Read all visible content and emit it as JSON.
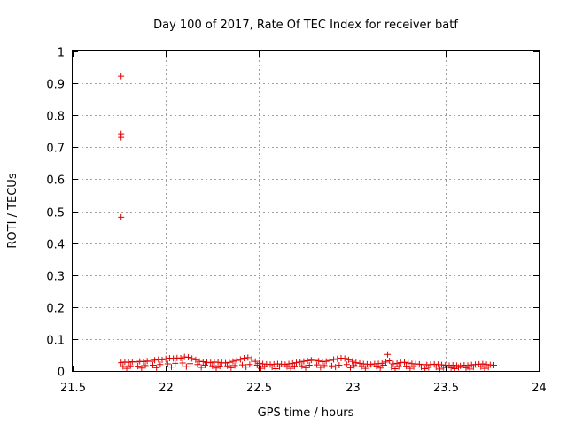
{
  "chart_data": {
    "type": "scatter",
    "title": "Day 100 of 2017, Rate Of TEC Index for receiver batf",
    "xlabel": "GPS time / hours",
    "ylabel": "ROTI / TECUs",
    "xlim": [
      21.5,
      24
    ],
    "ylim": [
      0,
      1
    ],
    "xticks": [
      "21.5",
      "22",
      "22.5",
      "23",
      "23.5",
      "24"
    ],
    "yticks": [
      "0",
      "0.1",
      "0.2",
      "0.3",
      "0.4",
      "0.5",
      "0.6",
      "0.7",
      "0.8",
      "0.9",
      "1"
    ],
    "grid": true,
    "marker": "+",
    "color": "#e00000",
    "series": [
      {
        "x": [
          21.76,
          21.76,
          21.76,
          21.76,
          21.76,
          21.78,
          21.8,
          21.82,
          21.84,
          21.86,
          21.88,
          21.9,
          21.92,
          21.94,
          21.96,
          21.98,
          22.0,
          22.02,
          22.04,
          22.06,
          22.08,
          22.1,
          22.12,
          22.14,
          22.16,
          22.18,
          22.2,
          22.22,
          22.24,
          22.26,
          22.28,
          22.3,
          22.32,
          22.34,
          22.36,
          22.38,
          22.4,
          22.42,
          22.44,
          22.46,
          22.48,
          22.5,
          22.52,
          22.54,
          22.56,
          22.58,
          22.6,
          22.62,
          22.64,
          22.66,
          22.68,
          22.7,
          22.72,
          22.74,
          22.76,
          22.78,
          22.8,
          22.82,
          22.84,
          22.86,
          22.88,
          22.9,
          22.92,
          22.94,
          22.96,
          22.98,
          23.0,
          23.02,
          23.04,
          23.06,
          23.08,
          23.1,
          23.12,
          23.14,
          23.16,
          23.18,
          23.2,
          23.22,
          23.24,
          23.26,
          23.28,
          23.3,
          23.32,
          23.34,
          23.36,
          23.38,
          23.4,
          23.42,
          23.44,
          23.46,
          23.48,
          23.5,
          23.52,
          23.54,
          23.56,
          23.58,
          23.6,
          23.62,
          23.64,
          23.66,
          23.68,
          23.7,
          23.72,
          23.74,
          23.76,
          21.77,
          21.81,
          21.85,
          21.89,
          21.93,
          21.97,
          22.01,
          22.05,
          22.09,
          22.13,
          22.17,
          22.21,
          22.25,
          22.29,
          22.33,
          22.37,
          22.41,
          22.45,
          22.49,
          22.53,
          22.57,
          22.61,
          22.65,
          22.69,
          22.73,
          22.77,
          22.81,
          22.85,
          22.89,
          22.93,
          22.97,
          23.01,
          23.05,
          23.09,
          23.13,
          23.17,
          23.21,
          23.25,
          23.29,
          23.33,
          23.37,
          23.41,
          23.45,
          23.49,
          23.53,
          23.57,
          23.61,
          23.65,
          23.69,
          23.73,
          21.79,
          21.87,
          21.95,
          22.03,
          22.11,
          22.19,
          22.27,
          22.35,
          22.43,
          22.51,
          22.59,
          22.67,
          22.75,
          22.83,
          22.91,
          22.99,
          23.07,
          23.15,
          23.23,
          23.31,
          23.39,
          23.47,
          23.55,
          23.63,
          23.71,
          23.19
        ],
        "y": [
          0.922,
          0.742,
          0.731,
          0.481,
          0.026,
          0.028,
          0.027,
          0.029,
          0.028,
          0.03,
          0.029,
          0.031,
          0.03,
          0.034,
          0.036,
          0.035,
          0.038,
          0.04,
          0.039,
          0.041,
          0.04,
          0.044,
          0.043,
          0.039,
          0.035,
          0.03,
          0.029,
          0.027,
          0.026,
          0.028,
          0.027,
          0.026,
          0.025,
          0.027,
          0.03,
          0.033,
          0.036,
          0.04,
          0.042,
          0.037,
          0.03,
          0.024,
          0.022,
          0.021,
          0.02,
          0.021,
          0.022,
          0.021,
          0.02,
          0.022,
          0.024,
          0.026,
          0.028,
          0.03,
          0.032,
          0.034,
          0.033,
          0.031,
          0.029,
          0.03,
          0.033,
          0.036,
          0.038,
          0.04,
          0.039,
          0.035,
          0.03,
          0.026,
          0.024,
          0.022,
          0.021,
          0.02,
          0.022,
          0.023,
          0.024,
          0.028,
          0.032,
          0.022,
          0.024,
          0.026,
          0.027,
          0.025,
          0.023,
          0.022,
          0.021,
          0.02,
          0.019,
          0.02,
          0.021,
          0.02,
          0.019,
          0.018,
          0.017,
          0.018,
          0.017,
          0.016,
          0.018,
          0.017,
          0.019,
          0.02,
          0.021,
          0.022,
          0.02,
          0.019,
          0.018,
          0.014,
          0.016,
          0.015,
          0.017,
          0.018,
          0.02,
          0.022,
          0.024,
          0.025,
          0.023,
          0.02,
          0.018,
          0.016,
          0.015,
          0.016,
          0.017,
          0.019,
          0.02,
          0.018,
          0.014,
          0.012,
          0.013,
          0.014,
          0.015,
          0.016,
          0.018,
          0.019,
          0.017,
          0.016,
          0.018,
          0.02,
          0.017,
          0.014,
          0.013,
          0.015,
          0.018,
          0.012,
          0.014,
          0.015,
          0.013,
          0.012,
          0.011,
          0.012,
          0.011,
          0.01,
          0.011,
          0.01,
          0.012,
          0.013,
          0.012,
          0.008,
          0.009,
          0.01,
          0.012,
          0.013,
          0.011,
          0.009,
          0.01,
          0.012,
          0.008,
          0.007,
          0.008,
          0.01,
          0.011,
          0.012,
          0.01,
          0.008,
          0.009,
          0.007,
          0.008,
          0.007,
          0.006,
          0.007,
          0.006,
          0.008,
          0.052
        ]
      }
    ]
  }
}
